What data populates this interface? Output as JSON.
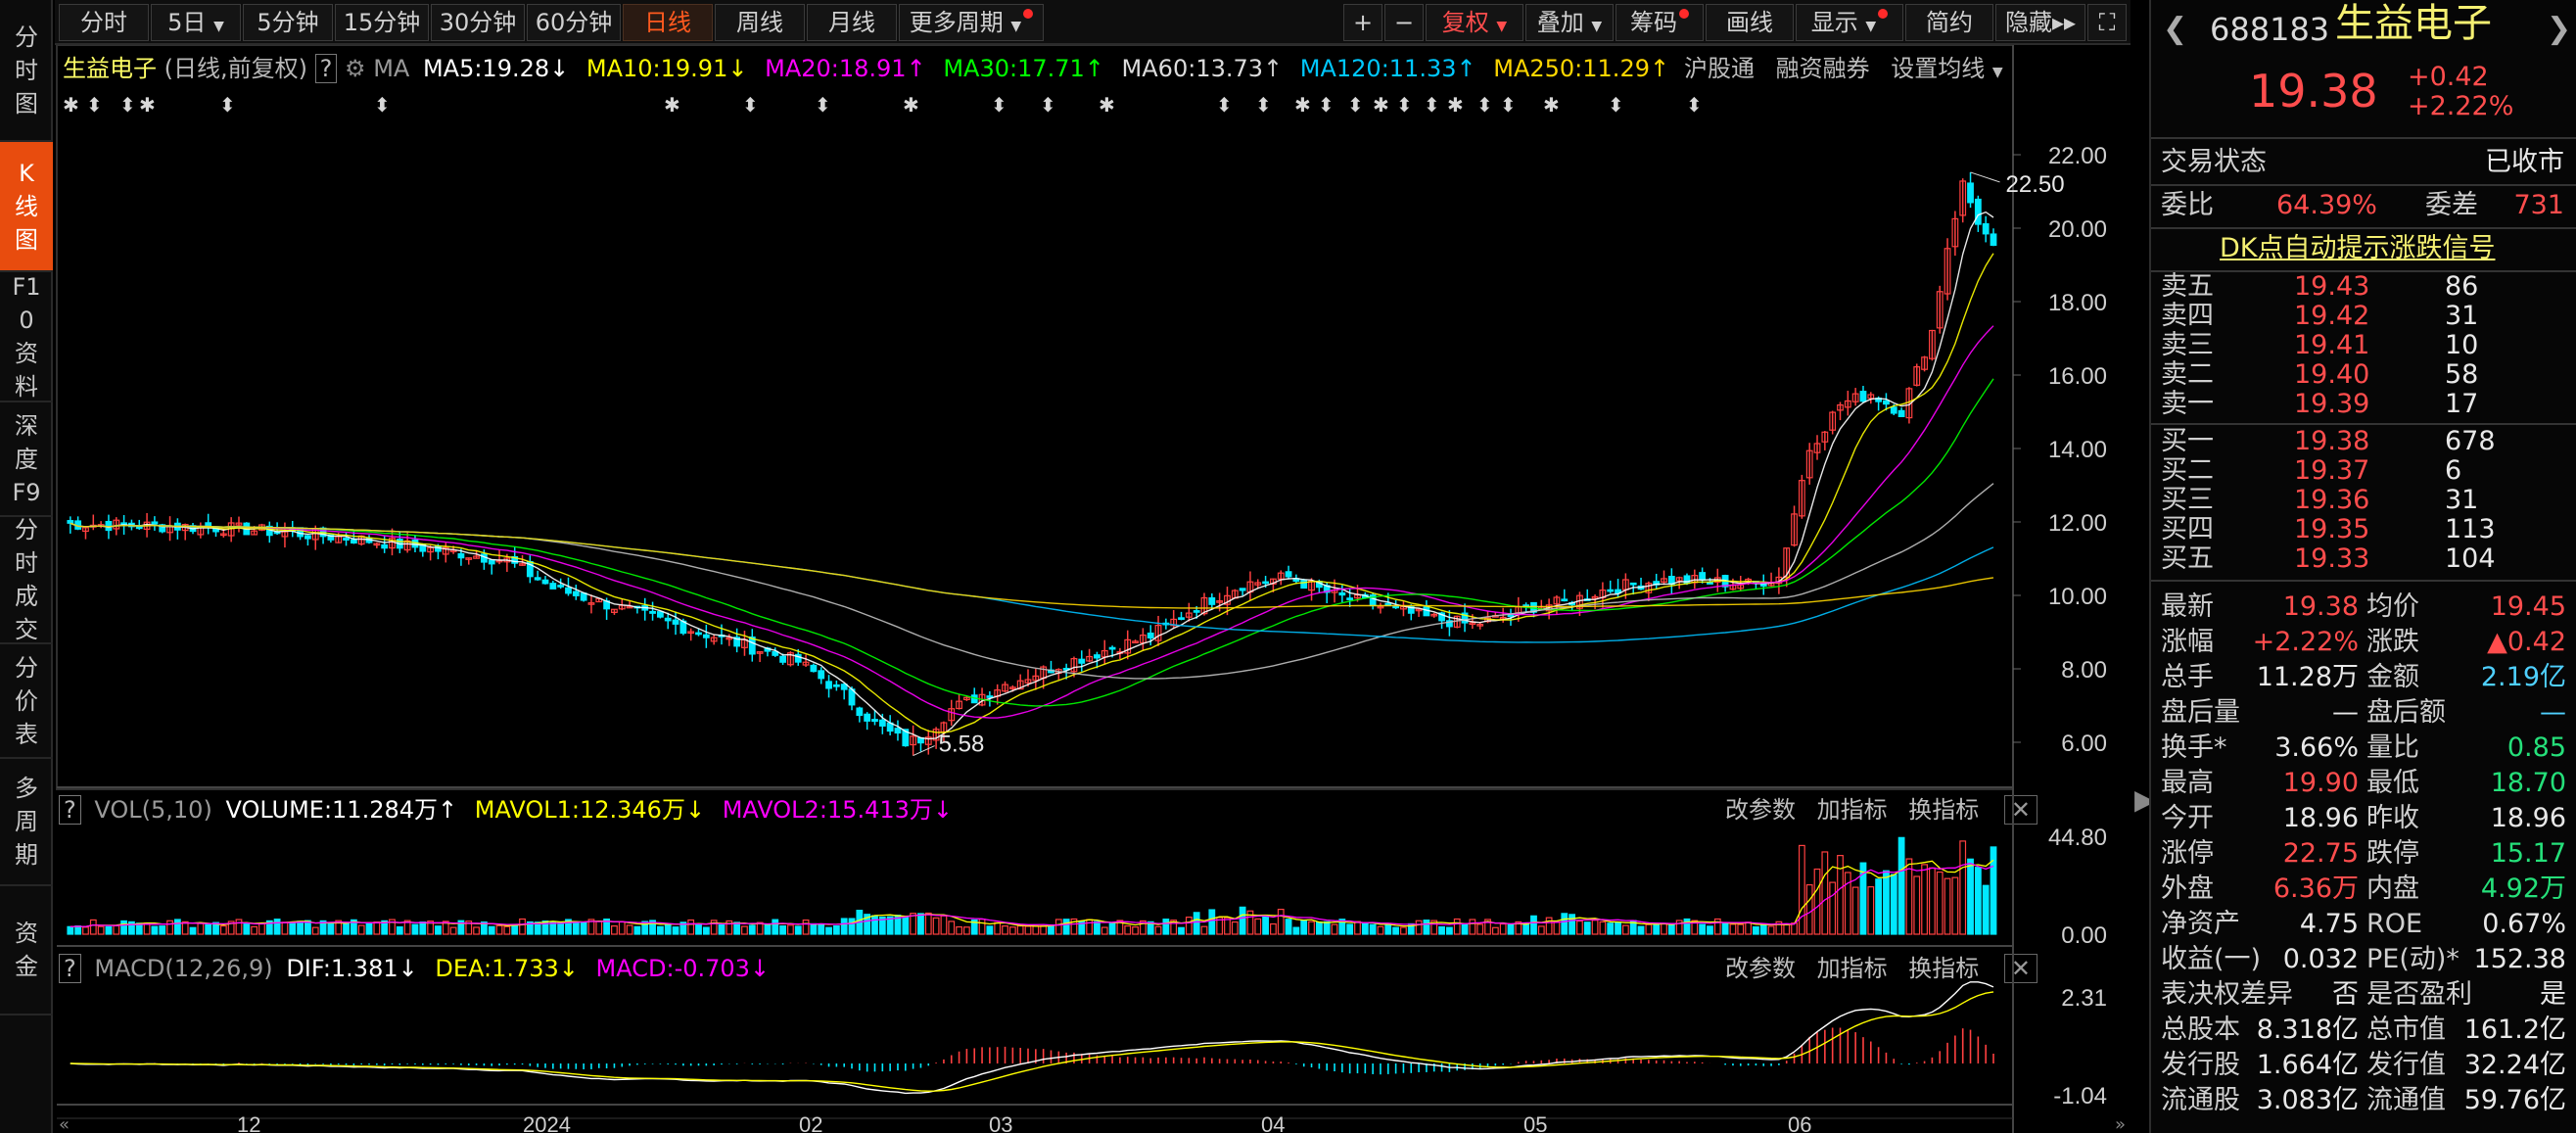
{
  "toolbar": {
    "periods": [
      "分时",
      "5日",
      "5分钟",
      "15分钟",
      "30分钟",
      "60分钟",
      "日线",
      "周线",
      "月线",
      "更多周期"
    ],
    "active_period": "日线",
    "right_buttons": [
      "+",
      "−",
      "复权",
      "叠加",
      "筹码",
      "画线",
      "显示",
      "简约",
      "隐藏"
    ],
    "fuquan_label": "复权"
  },
  "leftnav": [
    "分时图",
    "K线图",
    "F10资料",
    "深度F9",
    "分时成交",
    "分价表",
    "多周期",
    "资金"
  ],
  "stock": {
    "name": "生益电子",
    "code": "688183",
    "price": "19.38",
    "change": "+0.42",
    "change_pct": "+2.22%"
  },
  "ma_line": {
    "title": "生益电子",
    "sub": "(日线,前复权)",
    "ma_label": "MA",
    "ma5": "MA5:19.28",
    "ma10": "MA10:19.91",
    "ma20": "MA20:18.91",
    "ma30": "MA30:17.71",
    "ma60": "MA60:13.73",
    "ma120": "MA120:11.33",
    "ma250": "MA250:11.29",
    "links": [
      "沪股通",
      "融资融券",
      "设置均线"
    ]
  },
  "vol_line": {
    "name": "VOL(5,10)",
    "volume": "VOLUME:11.284万",
    "mavol1": "MAVOL1:12.346万",
    "mavol2": "MAVOL2:15.413万",
    "links": [
      "改参数",
      "加指标",
      "换指标"
    ]
  },
  "macd_line": {
    "name": "MACD(12,26,9)",
    "dif": "DIF:1.381",
    "dea": "DEA:1.733",
    "macd": "MACD:-0.703",
    "links": [
      "改参数",
      "加指标",
      "换指标"
    ]
  },
  "annotations": {
    "high": "22.50",
    "low": "5.58"
  },
  "y_axis_main": [
    "22.00",
    "20.00",
    "18.00",
    "16.00",
    "14.00",
    "12.00",
    "10.00",
    "8.00",
    "6.00"
  ],
  "y_axis_vol": [
    "44.80",
    "0.00"
  ],
  "y_axis_macd": [
    "2.31",
    "-1.04"
  ],
  "x_axis": [
    "12",
    "2024",
    "02",
    "03",
    "04",
    "05",
    "06"
  ],
  "colors": {
    "up": "#ff4040",
    "down": "#00e8ff",
    "ma5": "#ffffff",
    "ma10": "#ffff00",
    "ma20": "#ff00ff",
    "ma30": "#00ff00",
    "ma60": "#c0c0c0",
    "ma120": "#00c0ff",
    "ma250": "#ffd700"
  },
  "right": {
    "status_label": "交易状态",
    "status": "已收市",
    "weibi_label": "委比",
    "weibi": "64.39%",
    "weicha_label": "委差",
    "weicha": "731",
    "dk_link": "DK点自动提示涨跌信号",
    "sell": [
      {
        "l": "卖五",
        "p": "19.43",
        "v": "86"
      },
      {
        "l": "卖四",
        "p": "19.42",
        "v": "31"
      },
      {
        "l": "卖三",
        "p": "19.41",
        "v": "10"
      },
      {
        "l": "卖二",
        "p": "19.40",
        "v": "58"
      },
      {
        "l": "卖一",
        "p": "19.39",
        "v": "17"
      }
    ],
    "buy": [
      {
        "l": "买一",
        "p": "19.38",
        "v": "678"
      },
      {
        "l": "买二",
        "p": "19.37",
        "v": "6"
      },
      {
        "l": "买三",
        "p": "19.36",
        "v": "31"
      },
      {
        "l": "买四",
        "p": "19.35",
        "v": "113"
      },
      {
        "l": "买五",
        "p": "19.33",
        "v": "104"
      }
    ],
    "stats": [
      {
        "l1": "最新",
        "v1": "19.38",
        "c1": "red",
        "l2": "均价",
        "v2": "19.45",
        "c2": "red"
      },
      {
        "l1": "涨幅",
        "v1": "+2.22%",
        "c1": "red",
        "l2": "涨跌",
        "v2": "▲0.42",
        "c2": "red"
      },
      {
        "l1": "总手",
        "v1": "11.28万",
        "c1": "white",
        "l2": "金额",
        "v2": "2.19亿",
        "c2": "cyan"
      },
      {
        "l1": "盘后量",
        "v1": "—",
        "c1": "white",
        "l2": "盘后额",
        "v2": "—",
        "c2": "cyan"
      },
      {
        "l1": "换手*",
        "v1": "3.66%",
        "c1": "white",
        "l2": "量比",
        "v2": "0.85",
        "c2": "green"
      },
      {
        "l1": "最高",
        "v1": "19.90",
        "c1": "red",
        "l2": "最低",
        "v2": "18.70",
        "c2": "green"
      },
      {
        "l1": "今开",
        "v1": "18.96",
        "c1": "white",
        "l2": "昨收",
        "v2": "18.96",
        "c2": "white"
      },
      {
        "l1": "涨停",
        "v1": "22.75",
        "c1": "red",
        "l2": "跌停",
        "v2": "15.17",
        "c2": "green"
      },
      {
        "l1": "外盘",
        "v1": "6.36万",
        "c1": "red",
        "l2": "内盘",
        "v2": "4.92万",
        "c2": "green"
      },
      {
        "l1": "净资产",
        "v1": "4.75",
        "c1": "white",
        "l2": "ROE",
        "v2": "0.67%",
        "c2": "white"
      },
      {
        "l1": "收益(一)",
        "v1": "0.032",
        "c1": "white",
        "l2": "PE(动)*",
        "v2": "152.38",
        "c2": "white"
      },
      {
        "l1": "表决权差异",
        "v1": "否",
        "c1": "white",
        "l2": "是否盈利",
        "v2": "是",
        "c2": "white"
      },
      {
        "l1": "总股本",
        "v1": "8.318亿",
        "c1": "white",
        "l2": "总市值",
        "v2": "161.2亿",
        "c2": "white"
      },
      {
        "l1": "发行股",
        "v1": "1.664亿",
        "c1": "white",
        "l2": "发行值",
        "v2": "32.24亿",
        "c2": "white"
      },
      {
        "l1": "流通股",
        "v1": "3.083亿",
        "c1": "white",
        "l2": "流通值",
        "v2": "59.76亿",
        "c2": "white"
      }
    ]
  }
}
